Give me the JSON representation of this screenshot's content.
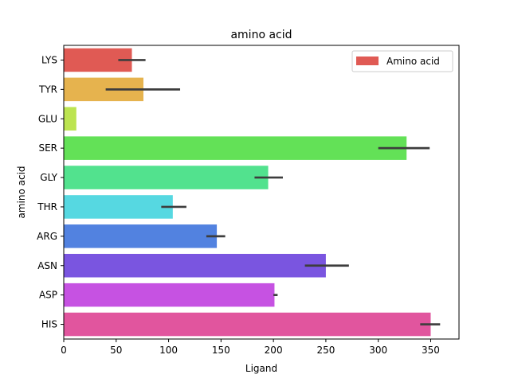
{
  "chart_data": {
    "type": "bar",
    "orientation": "horizontal",
    "title": "amino acid",
    "xlabel": "Ligand",
    "ylabel": "amino acid",
    "xlim": [
      0,
      377
    ],
    "xticks": [
      0,
      50,
      100,
      150,
      200,
      250,
      300,
      350
    ],
    "categories": [
      "LYS",
      "TYR",
      "GLU",
      "SER",
      "GLY",
      "THR",
      "ARG",
      "ASN",
      "ASP",
      "HIS"
    ],
    "values": [
      65,
      76,
      12,
      327,
      195,
      104,
      146,
      250,
      201,
      350
    ],
    "error_low": [
      52,
      40,
      null,
      300,
      182,
      93,
      136,
      230,
      200,
      340
    ],
    "error_high": [
      78,
      111,
      null,
      349,
      209,
      117,
      154,
      272,
      204,
      359
    ],
    "colors": [
      "#e05a54",
      "#e6b34e",
      "#bce450",
      "#63e157",
      "#52e28e",
      "#56d8e1",
      "#5282e0",
      "#7a55e0",
      "#c652e2",
      "#e1559e"
    ],
    "legend": {
      "label": "Amino acid",
      "color": "#e05a54",
      "placement": "upper-right"
    },
    "grid": false
  }
}
